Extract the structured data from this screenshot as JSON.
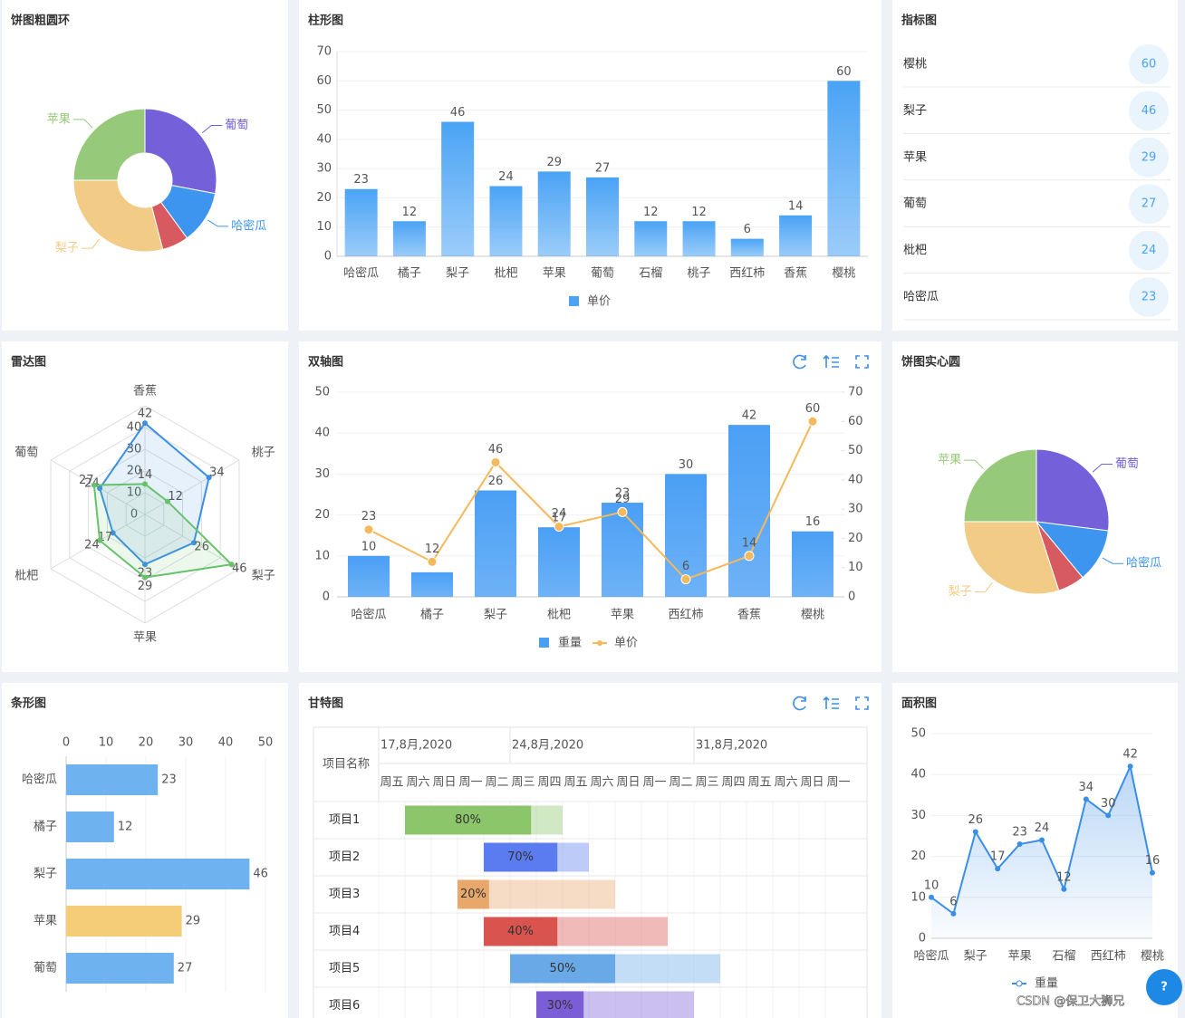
{
  "chart_data": [
    {
      "type": "donut",
      "title": "饼图粗圆环",
      "categories": [
        "葡萄",
        "哈密瓜",
        null,
        "梨子",
        "苹果"
      ],
      "values": [
        28,
        12,
        6,
        29,
        25
      ],
      "colors": [
        "#7460d9",
        "#3e95ef",
        "#d65a5f",
        "#f2cb86",
        "#96c97a"
      ]
    },
    {
      "type": "bar",
      "title": "柱形图",
      "categories": [
        "哈密瓜",
        "橘子",
        "梨子",
        "枇杷",
        "苹果",
        "葡萄",
        "石榴",
        "桃子",
        "西红柿",
        "香蕉",
        "樱桃"
      ],
      "series": [
        {
          "name": "单价",
          "color": "#4aa3f5",
          "values": [
            23,
            12,
            46,
            24,
            29,
            27,
            12,
            12,
            6,
            14,
            60
          ]
        }
      ],
      "ylim": [
        0,
        70
      ],
      "yticks": [
        0,
        10,
        20,
        30,
        40,
        50,
        60,
        70
      ],
      "grid": true
    },
    {
      "type": "indicator",
      "title": "指标图",
      "categories": [
        "樱桃",
        "梨子",
        "苹果",
        "葡萄",
        "枇杷",
        "哈密瓜"
      ],
      "values": [
        60,
        46,
        29,
        27,
        24,
        23
      ],
      "color": "#4aa3f5"
    },
    {
      "type": "radar",
      "title": "雷达图",
      "categories": [
        "香蕉",
        "桃子",
        "梨子",
        "苹果",
        "枇杷",
        "葡萄"
      ],
      "series": [
        {
          "color": "#3a8ee6",
          "values": [
            42,
            34,
            26,
            23,
            17,
            24
          ]
        },
        {
          "color": "#67c26b",
          "values": [
            14,
            12,
            46,
            29,
            24,
            27
          ]
        }
      ],
      "ylim": [
        0,
        50
      ],
      "yticks": [
        0,
        10,
        20,
        30,
        40
      ]
    },
    {
      "type": "dual",
      "title": "双轴图",
      "categories": [
        "哈密瓜",
        "橘子",
        "梨子",
        "枇杷",
        "苹果",
        "西红柿",
        "香蕉",
        "樱桃"
      ],
      "series": [
        {
          "name": "重量",
          "type": "bar",
          "color": "#4a9ff5",
          "values": [
            10,
            6,
            26,
            17,
            23,
            30,
            42,
            16
          ]
        },
        {
          "name": "单价",
          "type": "line",
          "axis": "y2",
          "color": "#f5b85a",
          "values": [
            23,
            12,
            46,
            24,
            29,
            6,
            14,
            60
          ]
        }
      ],
      "ylim": [
        0,
        50
      ],
      "yticks": [
        0,
        10,
        20,
        30,
        40,
        50
      ],
      "y2lim": [
        0,
        70
      ],
      "y2ticks": [
        0,
        10,
        20,
        30,
        40,
        50,
        60,
        70
      ],
      "grid": true
    },
    {
      "type": "pie",
      "title": "饼图实心圆",
      "categories": [
        "葡萄",
        "哈密瓜",
        null,
        "梨子",
        "苹果"
      ],
      "values": [
        27,
        12,
        6,
        30,
        25
      ],
      "colors": [
        "#7460d9",
        "#3e95ef",
        "#d65a5f",
        "#f2cb86",
        "#96c97a"
      ]
    },
    {
      "type": "hbar",
      "title": "条形图",
      "categories": [
        "哈密瓜",
        "橘子",
        "梨子",
        "苹果",
        "葡萄"
      ],
      "values": [
        23,
        12,
        46,
        29,
        27
      ],
      "colors": [
        "#6eb2f0",
        "#6eb2f0",
        "#6eb2f0",
        "#f5cd77",
        "#6eb2f0"
      ],
      "xlim": [
        0,
        50
      ],
      "xticks": [
        0,
        10,
        20,
        30,
        40,
        50
      ],
      "grid": true
    },
    {
      "type": "gantt",
      "title": "甘特图",
      "column_header": "项目名称",
      "days": [
        "周五",
        "周六",
        "周日",
        "周一",
        "周二",
        "周三",
        "周四",
        "周五",
        "周六",
        "周日",
        "周一",
        "周二",
        "周三",
        "周四",
        "周五",
        "周六",
        "周日",
        "周一"
      ],
      "xlim": [
        0,
        18
      ],
      "xticks": [
        {
          "value": 0,
          "label": "17,8月,2020"
        },
        {
          "value": 5,
          "label": "24,8月,2020"
        },
        {
          "value": 12,
          "label": "31,8月,2020"
        }
      ],
      "categories": [
        "项目1",
        "项目2",
        "项目3",
        "项目4",
        "项目5",
        "项目6"
      ],
      "start": [
        1,
        4,
        3,
        4,
        5,
        6
      ],
      "end": [
        7,
        8,
        9,
        11,
        13,
        12
      ],
      "values": [
        80,
        70,
        20,
        40,
        50,
        30
      ],
      "value_labels": [
        "80%",
        "70%",
        "20%",
        "40%",
        "50%",
        "30%"
      ],
      "colors": [
        "#8cc66b",
        "#5b7cf0",
        "#e8a86b",
        "#d9534f",
        "#6aa9e8",
        "#7b5ed6"
      ]
    },
    {
      "type": "area",
      "title": "面积图",
      "categories": [
        "哈密瓜",
        null,
        "梨子",
        null,
        "苹果",
        null,
        "石榴",
        null,
        "西红柿",
        null,
        "樱桃"
      ],
      "series": [
        {
          "name": "重量",
          "color": "#3a8ee6",
          "values": [
            10,
            6,
            26,
            17,
            23,
            24,
            12,
            34,
            30,
            42,
            16
          ]
        }
      ],
      "ylim": [
        0,
        50
      ],
      "yticks": [
        0,
        10,
        20,
        30,
        40,
        50
      ],
      "grid": true
    }
  ],
  "watermark": "CSDN @保卫大狮兄",
  "help_button": "?"
}
